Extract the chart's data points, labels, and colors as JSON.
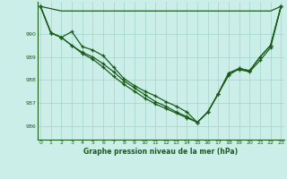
{
  "title": "Graphe pression niveau de la mer (hPa)",
  "bg_color": "#cceee8",
  "grid_color": "#aad8d2",
  "line_color": "#1a5c1a",
  "x_ticks": [
    0,
    1,
    2,
    3,
    4,
    5,
    6,
    7,
    8,
    9,
    10,
    11,
    12,
    13,
    14,
    15,
    16,
    17,
    18,
    19,
    20,
    21,
    22,
    23
  ],
  "y_ticks": [
    986,
    987,
    988,
    989,
    990
  ],
  "ylim": [
    985.4,
    991.4
  ],
  "xlim": [
    -0.3,
    23.3
  ],
  "lines": [
    {
      "y": [
        991.2,
        990.05,
        989.85,
        990.1,
        989.45,
        989.3,
        989.05,
        988.55,
        988.05,
        987.75,
        987.5,
        987.3,
        987.05,
        986.85,
        986.6,
        986.15,
        986.6,
        987.4,
        988.2,
        988.5,
        988.4,
        989.0,
        989.5,
        991.2
      ],
      "marker": true
    },
    {
      "y": [
        991.2,
        991.1,
        991.0,
        991.0,
        991.0,
        991.0,
        991.0,
        991.0,
        991.0,
        991.0,
        991.0,
        991.0,
        991.0,
        991.0,
        991.0,
        991.0,
        991.0,
        991.0,
        991.0,
        991.0,
        991.0,
        991.0,
        991.0,
        991.2
      ],
      "marker": false
    },
    {
      "y": [
        991.2,
        990.05,
        989.85,
        989.5,
        989.2,
        989.0,
        988.7,
        988.35,
        987.95,
        987.65,
        987.35,
        987.05,
        986.85,
        986.6,
        986.4,
        986.15,
        986.6,
        987.4,
        988.3,
        988.5,
        988.4,
        989.0,
        989.5,
        991.2
      ],
      "marker": true
    },
    {
      "y": [
        991.2,
        990.05,
        989.85,
        989.5,
        989.15,
        988.9,
        988.55,
        988.15,
        987.8,
        987.5,
        987.2,
        986.95,
        986.75,
        986.55,
        986.35,
        986.15,
        986.6,
        987.4,
        988.3,
        988.45,
        988.35,
        988.85,
        989.4,
        991.2
      ],
      "marker": true
    }
  ]
}
